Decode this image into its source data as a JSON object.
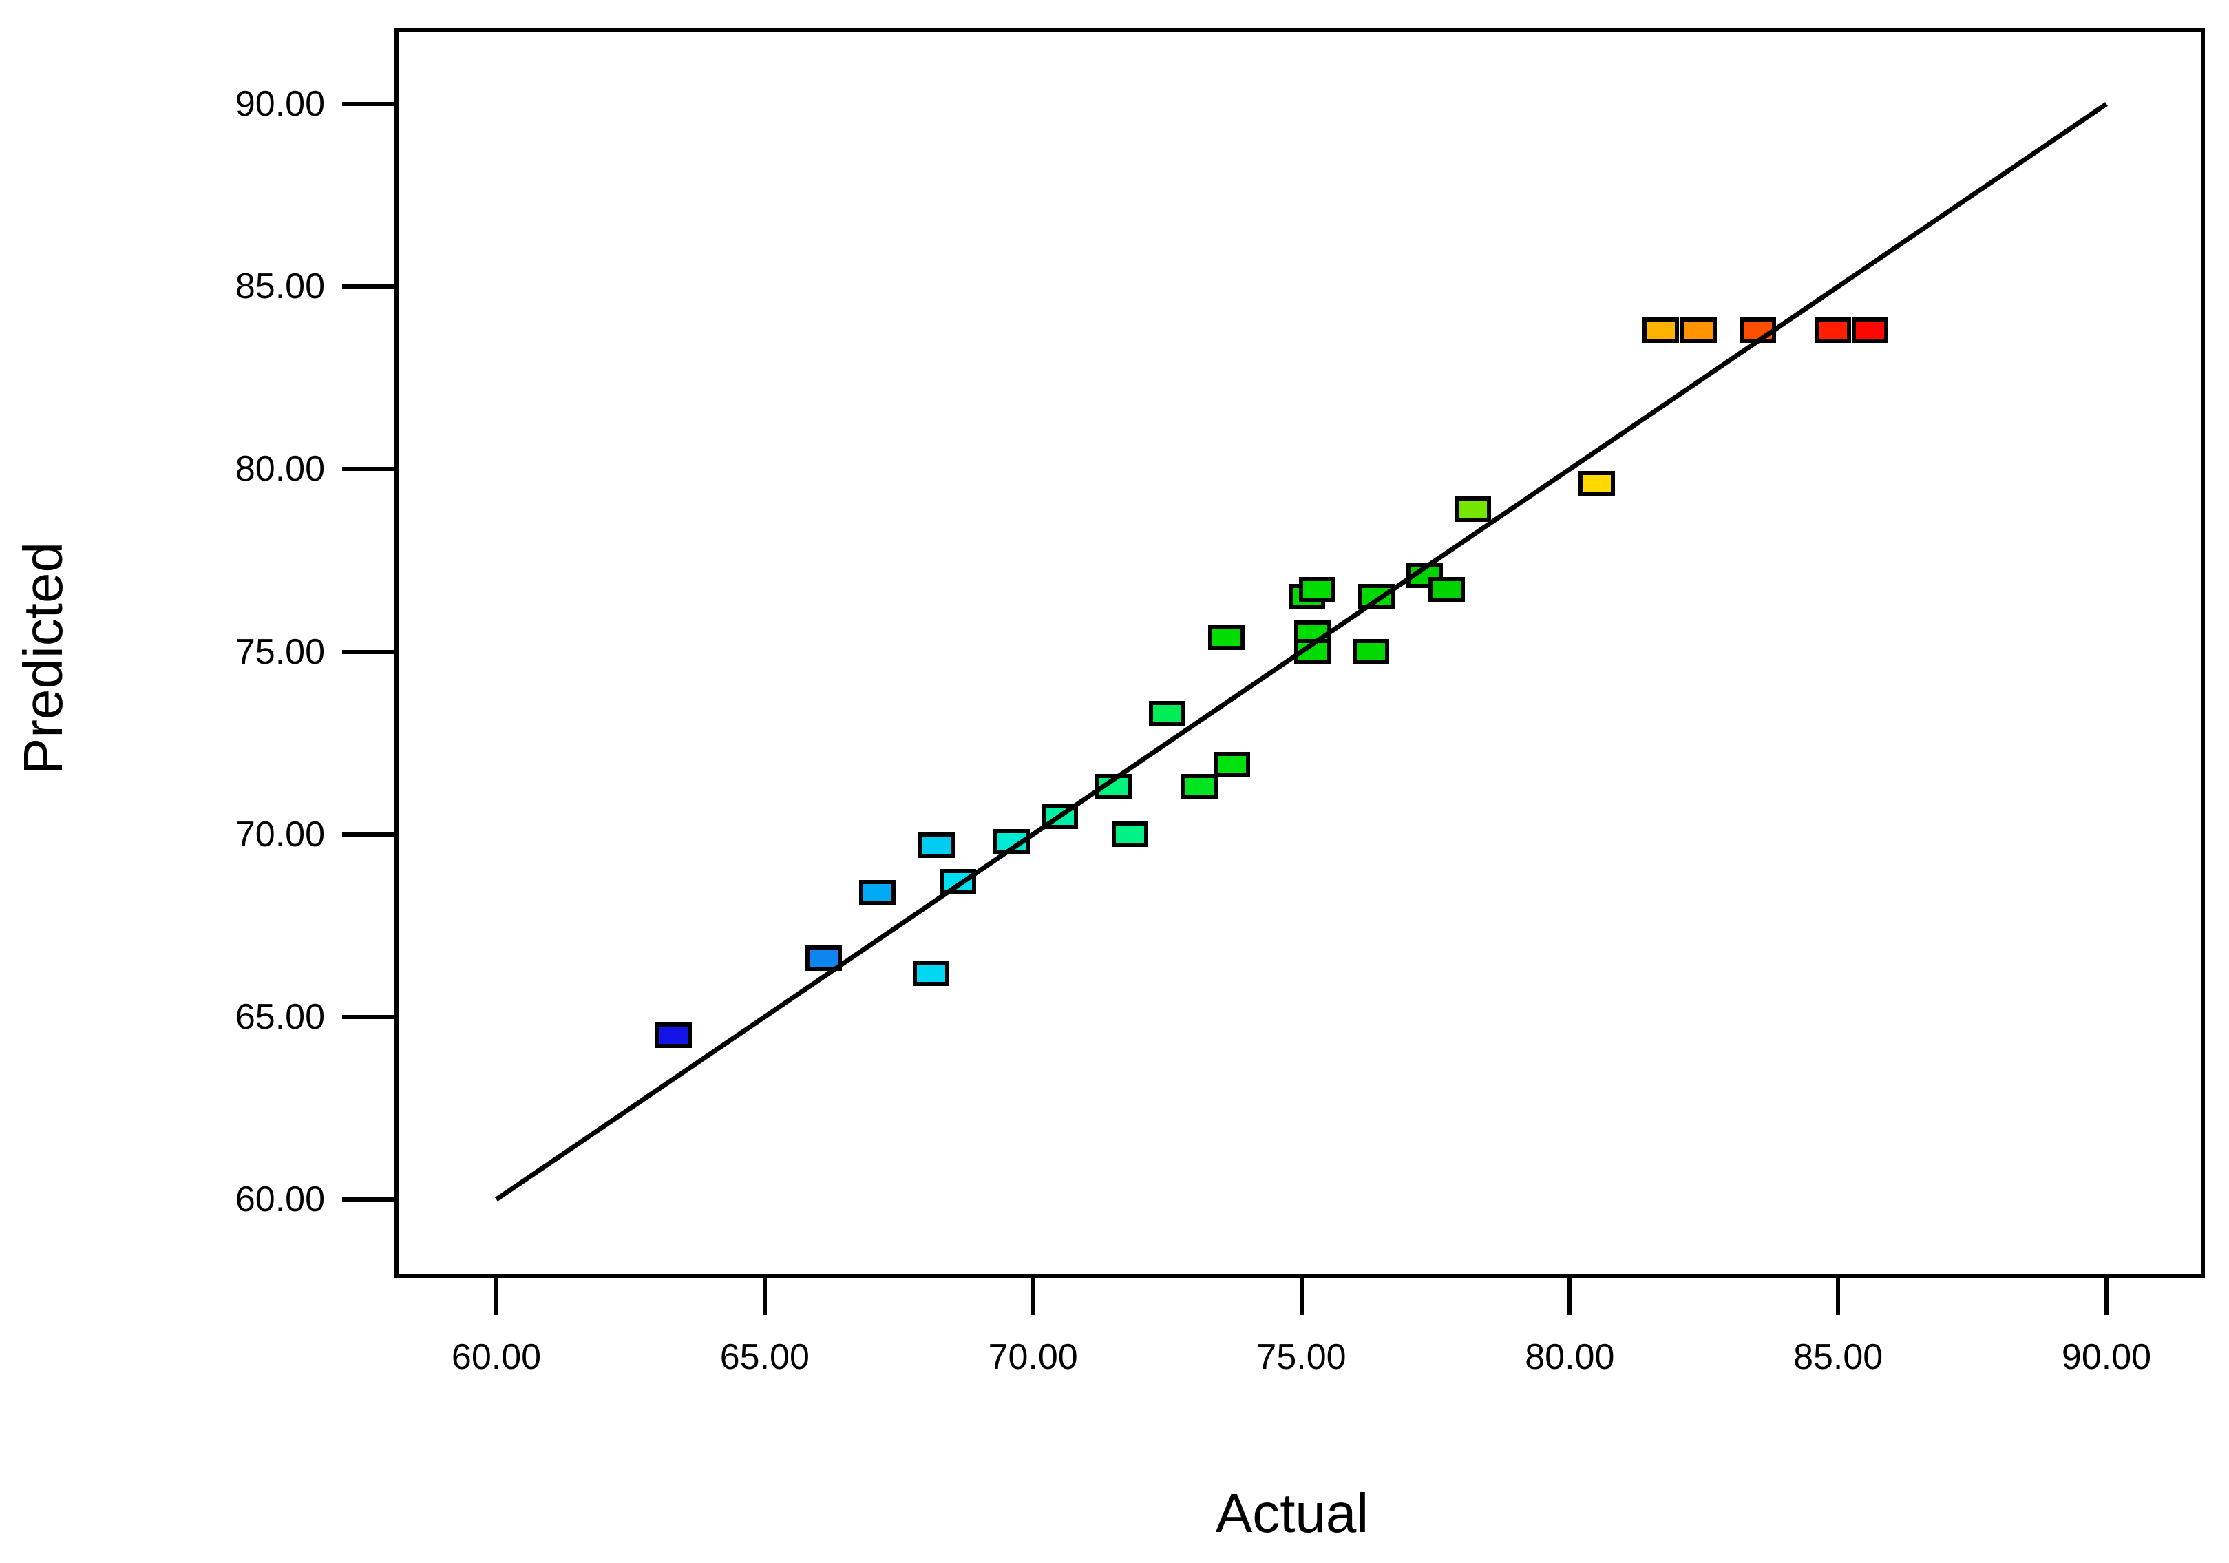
{
  "chart_data": {
    "type": "scatter",
    "xlabel": "Actual",
    "ylabel": "Predicted",
    "x_ticks": [
      {
        "value": 60,
        "label": "60.00"
      },
      {
        "value": 65,
        "label": "65.00"
      },
      {
        "value": 70,
        "label": "70.00"
      },
      {
        "value": 75,
        "label": "75.00"
      },
      {
        "value": 80,
        "label": "80.00"
      },
      {
        "value": 85,
        "label": "85.00"
      },
      {
        "value": 90,
        "label": "90.00"
      }
    ],
    "y_ticks": [
      {
        "value": 60,
        "label": "60.00"
      },
      {
        "value": 65,
        "label": "65.00"
      },
      {
        "value": 70,
        "label": "70.00"
      },
      {
        "value": 75,
        "label": "75.00"
      },
      {
        "value": 80,
        "label": "80.00"
      },
      {
        "value": 85,
        "label": "85.00"
      },
      {
        "value": 90,
        "label": "90.00"
      }
    ],
    "xlim": [
      58.1,
      91.8
    ],
    "ylim": [
      57.9,
      92.1
    ],
    "grid": false,
    "legend": false,
    "identity_line": {
      "x1": 60,
      "y1": 60,
      "x2": 90,
      "y2": 90
    },
    "marker_shape": "square",
    "marker_border_color": "#000000",
    "points": [
      {
        "actual": 63.3,
        "predicted": 64.5,
        "color": "#1414E6"
      },
      {
        "actual": 66.1,
        "predicted": 66.6,
        "color": "#0E86F0"
      },
      {
        "actual": 67.1,
        "predicted": 68.4,
        "color": "#00AAF5"
      },
      {
        "actual": 68.1,
        "predicted": 66.2,
        "color": "#00D7F2"
      },
      {
        "actual": 68.2,
        "predicted": 69.7,
        "color": "#00CCF0"
      },
      {
        "actual": 68.6,
        "predicted": 68.7,
        "color": "#00DFF2"
      },
      {
        "actual": 69.6,
        "predicted": 69.8,
        "color": "#00E9D1"
      },
      {
        "actual": 70.5,
        "predicted": 70.5,
        "color": "#00EFA7"
      },
      {
        "actual": 71.5,
        "predicted": 71.3,
        "color": "#00F17E"
      },
      {
        "actual": 71.8,
        "predicted": 70.0,
        "color": "#00F185"
      },
      {
        "actual": 72.5,
        "predicted": 73.3,
        "color": "#00ED58"
      },
      {
        "actual": 73.1,
        "predicted": 71.3,
        "color": "#00E51F"
      },
      {
        "actual": 73.6,
        "predicted": 75.4,
        "color": "#00DC00"
      },
      {
        "actual": 73.7,
        "predicted": 71.9,
        "color": "#00E20D"
      },
      {
        "actual": 75.1,
        "predicted": 76.5,
        "color": "#00DC00"
      },
      {
        "actual": 75.3,
        "predicted": 76.7,
        "color": "#00DB00"
      },
      {
        "actual": 75.2,
        "predicted": 75.5,
        "color": "#00DB00"
      },
      {
        "actual": 75.2,
        "predicted": 75.0,
        "color": "#00DB00"
      },
      {
        "actual": 76.3,
        "predicted": 75.0,
        "color": "#00D800"
      },
      {
        "actual": 76.4,
        "predicted": 76.5,
        "color": "#00D800"
      },
      {
        "actual": 77.3,
        "predicted": 77.1,
        "color": "#00D300"
      },
      {
        "actual": 77.7,
        "predicted": 76.7,
        "color": "#00D300"
      },
      {
        "actual": 78.2,
        "predicted": 78.9,
        "color": "#74E600"
      },
      {
        "actual": 80.5,
        "predicted": 79.6,
        "color": "#FFD900"
      },
      {
        "actual": 81.7,
        "predicted": 83.8,
        "color": "#FFB200"
      },
      {
        "actual": 82.4,
        "predicted": 83.8,
        "color": "#FF9300"
      },
      {
        "actual": 83.5,
        "predicted": 83.8,
        "color": "#FF4E00"
      },
      {
        "actual": 84.9,
        "predicted": 83.8,
        "color": "#FF1E00"
      },
      {
        "actual": 85.6,
        "predicted": 83.8,
        "color": "#FF0600"
      }
    ]
  }
}
